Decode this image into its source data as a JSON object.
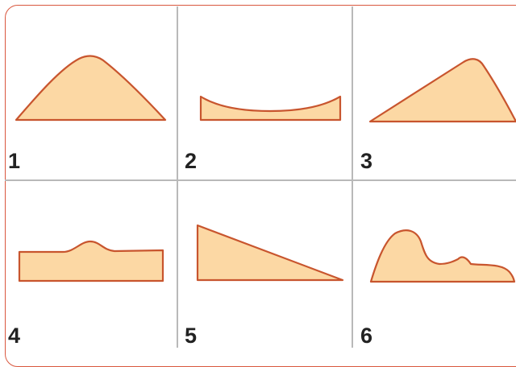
{
  "panels": [
    {
      "label": "1",
      "shape": "bell-curve"
    },
    {
      "label": "2",
      "shape": "shallow-u-curve"
    },
    {
      "label": "3",
      "shape": "left-skewed-peak"
    },
    {
      "label": "4",
      "shape": "flat-with-small-bump"
    },
    {
      "label": "5",
      "shape": "descending-line"
    },
    {
      "label": "6",
      "shape": "right-skewed-multi-peak"
    }
  ],
  "colors": {
    "frame_border": "#d9573e",
    "curve_stroke": "#c8552e",
    "curve_fill": "#fcd8a4",
    "grid_lines": "#b9b9b9",
    "label_text": "#222222"
  }
}
